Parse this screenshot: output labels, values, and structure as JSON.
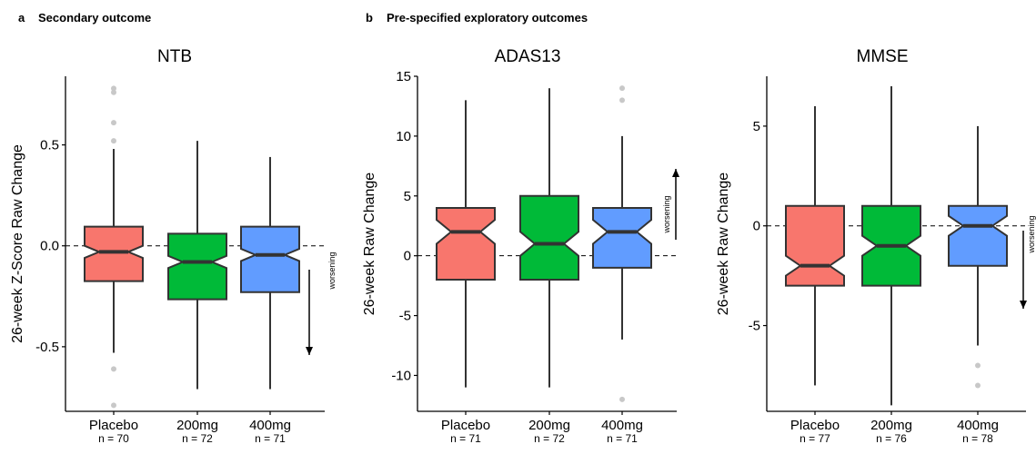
{
  "panels": [
    {
      "letter": "a",
      "title": "Secondary outcome"
    },
    {
      "letter": "b",
      "title": "Pre-specified exploratory outcomes"
    }
  ],
  "colors": {
    "Placebo": "#F8766D",
    "200mg": "#00BA38",
    "400mg": "#619CFF",
    "outlier": "#c8c8c8",
    "stroke": "#333333"
  },
  "chart_data": [
    {
      "type": "boxplot",
      "title": "NTB",
      "ylabel": "26-week Z-Score Raw Change",
      "ylim": [
        -0.82,
        0.84
      ],
      "yticks": [
        -0.5,
        0.0,
        0.5
      ],
      "ytick_labels": [
        "-0.5",
        "0.0",
        "0.5"
      ],
      "reference_line": 0,
      "annotation": {
        "text": "worsening",
        "direction": "down"
      },
      "categories": [
        "Placebo",
        "200mg",
        "400mg"
      ],
      "n_labels": [
        "n = 70",
        "n = 72",
        "n = 71"
      ],
      "boxes": [
        {
          "whisker_low": -0.53,
          "q1": -0.175,
          "median": -0.03,
          "q3": 0.095,
          "whisker_high": 0.48,
          "notch_low": -0.06,
          "notch_high": 0.0,
          "outliers": [
            0.78,
            0.76,
            0.61,
            0.52,
            -0.61,
            -0.79
          ]
        },
        {
          "whisker_low": -0.71,
          "q1": -0.265,
          "median": -0.08,
          "q3": 0.06,
          "whisker_high": 0.52,
          "notch_low": -0.11,
          "notch_high": -0.05,
          "outliers": []
        },
        {
          "whisker_low": -0.71,
          "q1": -0.23,
          "median": -0.045,
          "q3": 0.095,
          "whisker_high": 0.44,
          "notch_low": -0.075,
          "notch_high": -0.015,
          "outliers": []
        }
      ]
    },
    {
      "type": "boxplot",
      "title": "ADAS13",
      "ylabel": "26-week Raw Change",
      "ylim": [
        -13,
        15
      ],
      "yticks": [
        -10,
        -5,
        0,
        5,
        10,
        15
      ],
      "ytick_labels": [
        "-10",
        "-5",
        "0",
        "5",
        "10",
        "15"
      ],
      "reference_line": 0,
      "annotation": {
        "text": "worsening",
        "direction": "up"
      },
      "categories": [
        "Placebo",
        "200mg",
        "400mg"
      ],
      "n_labels": [
        "n = 71",
        "n = 72",
        "n = 71"
      ],
      "boxes": [
        {
          "whisker_low": -11,
          "q1": -2,
          "median": 2,
          "q3": 4,
          "whisker_high": 13,
          "notch_low": 1.0,
          "notch_high": 3.0,
          "outliers": []
        },
        {
          "whisker_low": -11,
          "q1": -2,
          "median": 1,
          "q3": 5,
          "whisker_high": 14,
          "notch_low": 0.0,
          "notch_high": 2.0,
          "outliers": []
        },
        {
          "whisker_low": -7,
          "q1": -1,
          "median": 2,
          "q3": 4,
          "whisker_high": 10,
          "notch_low": 1.0,
          "notch_high": 3.0,
          "outliers": [
            14,
            13,
            -12
          ]
        }
      ]
    },
    {
      "type": "boxplot",
      "title": "MMSE",
      "ylabel": "26-week Raw Change",
      "ylim": [
        -9.3,
        7.5
      ],
      "yticks": [
        -5,
        0,
        5
      ],
      "ytick_labels": [
        "-5",
        "0",
        "5"
      ],
      "reference_line": 0,
      "annotation": {
        "text": "worsening",
        "direction": "down"
      },
      "categories": [
        "Placebo",
        "200mg",
        "400mg"
      ],
      "n_labels": [
        "n = 77",
        "n = 76",
        "n = 78"
      ],
      "boxes": [
        {
          "whisker_low": -8,
          "q1": -3,
          "median": -2,
          "q3": 1,
          "whisker_high": 6,
          "notch_low": -2.5,
          "notch_high": -1.5,
          "outliers": []
        },
        {
          "whisker_low": -9,
          "q1": -3,
          "median": -1,
          "q3": 1,
          "whisker_high": 7,
          "notch_low": -1.5,
          "notch_high": -0.5,
          "outliers": []
        },
        {
          "whisker_low": -6,
          "q1": -2,
          "median": 0,
          "q3": 1,
          "whisker_high": 5,
          "notch_low": -0.5,
          "notch_high": 0.5,
          "outliers": [
            -7,
            -8
          ]
        }
      ]
    }
  ]
}
